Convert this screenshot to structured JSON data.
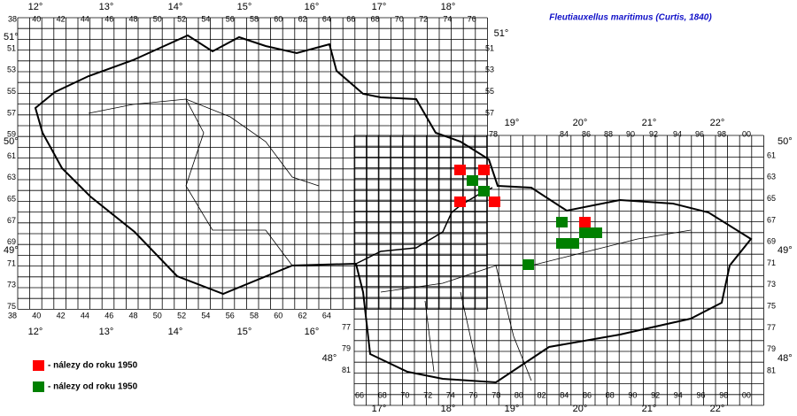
{
  "title": "Fleutiauxellus maritimus (Curtis, 1840)",
  "legend": [
    "- nálezy do roku 1950",
    "- nálezy od roku 1950"
  ],
  "top_col_labels": [
    "38",
    "40",
    "42",
    "44",
    "46",
    "48",
    "50",
    "52",
    "54",
    "56",
    "58",
    "60",
    "62",
    "64",
    "66",
    "68",
    "70",
    "72",
    "74",
    "76"
  ],
  "top_degrees": [
    "12°",
    "13°",
    "14°",
    "15°",
    "16°",
    "17°",
    "18°"
  ],
  "left_row_labels": [
    "51",
    "53",
    "55",
    "57",
    "59",
    "61",
    "63",
    "65",
    "67",
    "69",
    "71",
    "73",
    "75"
  ],
  "left_degrees": [
    "51°",
    "50°",
    "49°"
  ],
  "inner_right_row_labels": [
    "51",
    "53",
    "55",
    "57"
  ],
  "inner_right_degree": "51°",
  "east_col_labels": [
    "78",
    "84",
    "86",
    "88",
    "90",
    "92",
    "94",
    "96",
    "98",
    "00"
  ],
  "east_degrees": [
    "19°",
    "20°",
    "21°",
    "22°"
  ],
  "right_row_labels": [
    "61",
    "63",
    "65",
    "67",
    "69",
    "71",
    "73",
    "75",
    "77",
    "79",
    "81"
  ],
  "right_degrees": [
    "50°",
    "49°",
    "48°"
  ],
  "inner_left_row_labels": [
    "77",
    "79",
    "81"
  ],
  "inner_left_degree": "48°",
  "bottom_left_col_labels": [
    "38",
    "40",
    "42",
    "44",
    "46",
    "48",
    "50",
    "52",
    "54",
    "56",
    "58",
    "60",
    "62",
    "64"
  ],
  "bottom_left_degrees": [
    "12°",
    "13°",
    "14°",
    "15°",
    "16°"
  ],
  "bottom_right_col_labels": [
    "66",
    "68",
    "70",
    "72",
    "74",
    "76",
    "78",
    "80",
    "82",
    "84",
    "86",
    "88",
    "90",
    "92",
    "94",
    "96",
    "98",
    "00"
  ],
  "bottom_right_degrees": [
    "17°",
    "18°",
    "19°",
    "20°",
    "21°",
    "22°"
  ]
}
